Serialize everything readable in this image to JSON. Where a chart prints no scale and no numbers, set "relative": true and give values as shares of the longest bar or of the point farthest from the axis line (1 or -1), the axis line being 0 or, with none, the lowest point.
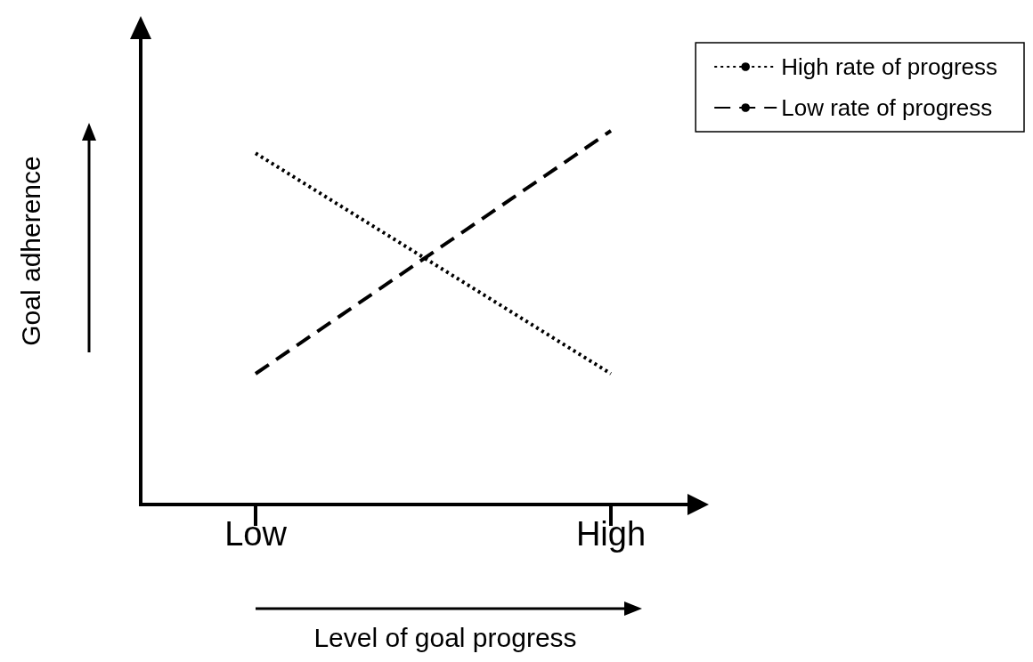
{
  "chart_data": {
    "type": "line",
    "relative": true,
    "xlabel": "Level of goal progress",
    "ylabel": "Goal adherence",
    "categories": [
      "Low",
      "High"
    ],
    "series": [
      {
        "name": "High rate of progress",
        "color": "#000000",
        "line_style": "dotted",
        "values": [
          0.94,
          0.35
        ]
      },
      {
        "name": "Low rate of progress",
        "color": "#000000",
        "line_style": "dashed",
        "values": [
          0.35,
          1
        ]
      }
    ],
    "legend": "top right",
    "grid": false,
    "marker": "none"
  }
}
